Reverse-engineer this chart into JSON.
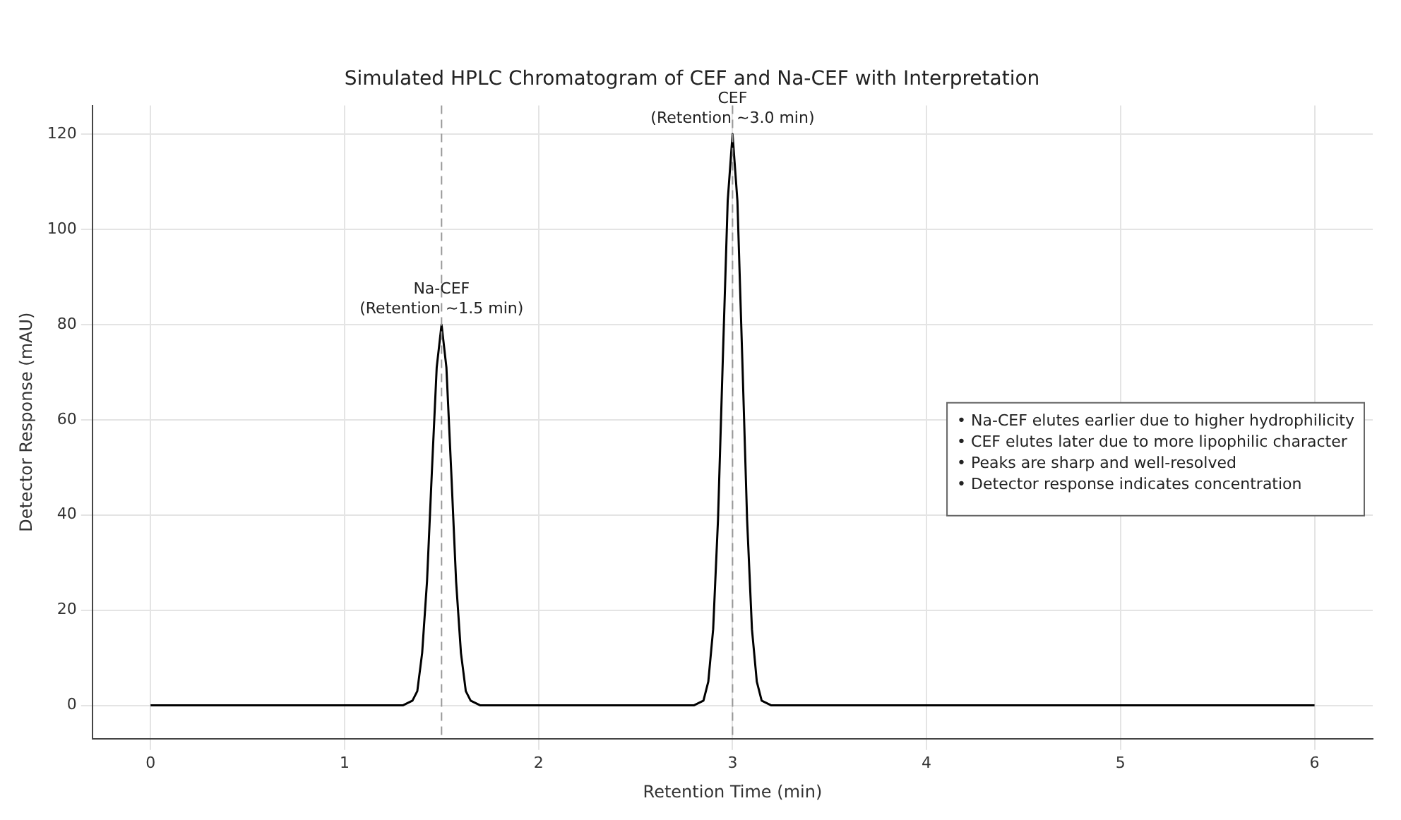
{
  "chart_data": {
    "type": "line",
    "title": "Simulated HPLC Chromatogram of CEF and Na-CEF with Interpretation",
    "xlabel": "Retention Time (min)",
    "ylabel": "Detector Response (mAU)",
    "x": [
      0,
      1.3,
      1.35,
      1.375,
      1.4,
      1.425,
      1.45,
      1.475,
      1.5,
      1.525,
      1.55,
      1.575,
      1.6,
      1.625,
      1.65,
      1.7,
      2.8,
      2.85,
      2.875,
      2.9,
      2.925,
      2.95,
      2.975,
      3.0,
      3.025,
      3.05,
      3.075,
      3.1,
      3.125,
      3.15,
      3.2,
      6
    ],
    "series": [
      {
        "color": "#000000",
        "values": [
          0,
          0,
          1,
          3,
          11,
          26,
          49,
          71,
          80,
          71,
          49,
          26,
          11,
          3,
          1,
          0,
          0,
          1,
          5,
          16,
          39,
          73,
          106,
          120,
          106,
          73,
          39,
          16,
          5,
          1,
          0,
          0
        ]
      }
    ],
    "xlim": [
      -0.3,
      6.3
    ],
    "xticks": [
      0,
      1,
      2,
      3,
      4,
      5,
      6
    ],
    "ylim": [
      -7,
      126
    ],
    "yticks": [
      0,
      20,
      40,
      60,
      80,
      100,
      120
    ],
    "grid": true,
    "marker": "none",
    "line_style": "solid",
    "ref_lines": [
      {
        "axis": "x",
        "value": 1.5,
        "color": "#999999",
        "line_style": "dashed"
      },
      {
        "axis": "x",
        "value": 3.0,
        "color": "#999999",
        "line_style": "dashed"
      }
    ],
    "annotations": [
      {
        "text": "Na-CEF\n(Retention ~1.5 min)",
        "x": 1.5,
        "y": 80
      },
      {
        "text": "CEF\n(Retention ~3.0 min)",
        "x": 3.0,
        "y": 120
      },
      "• Na-CEF elutes earlier due to higher hydrophilicity\n• CEF elutes later due to more lipophilic character\n• Peaks are sharp and well-resolved\n• Detector response indicates concentration"
    ]
  }
}
